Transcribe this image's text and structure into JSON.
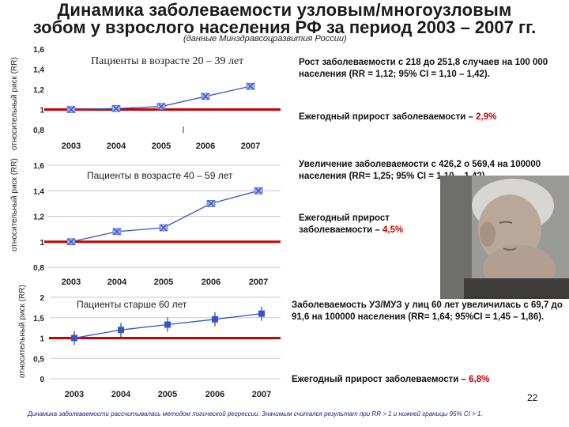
{
  "title": {
    "line1": "Динамика  заболеваемости узловым/многоузловым",
    "line2": "зобом у взрослого населения РФ за период 2003 – 2007 гг."
  },
  "source": "(данные Минздравсоцразвития России)",
  "panels": [
    {
      "ylabel": "относительный риск (RR)",
      "subtitle": "Пациенты в возрасте 20 – 39 лет",
      "text_main": "Рост заболеваемости с 218 до 251,8 случаев на 100 000 населения (RR = 1,12; 95% CI = 1,10 – 1,42).",
      "text_growth_prefix": "Ежегодный прирост заболеваемости –",
      "text_growth_value": "2,9%"
    },
    {
      "ylabel": "относительный риск (RR)",
      "subtitle": "Пациенты в возрасте 40 – 59 лет",
      "text_main": "Увеличение заболеваемости с 426,2 о 569,4 на 100000 населения (RR= 1,25; 95% CI = 1,10 – 1,42).",
      "text_growth_prefix": "Ежегодный прирост заболеваемости –",
      "text_growth_value": "4,5%"
    },
    {
      "ylabel": "относительный риск (RR)",
      "subtitle": "Пациенты старше 60 лет",
      "text_main": "Заболеваемость УЗ/МУЗ у лиц 60 лет увеличилась с 69,7 до 91,6 на 100000 населения (RR= 1,64; 95%CI = 1,45 – 1,86).",
      "text_growth_prefix": "Ежегодный прирост заболеваемости –",
      "text_growth_value": "6,8%"
    }
  ],
  "page_number": "22",
  "footnote": "Динамика заболеваемости рассчитывалась методом логической регрессии. Значимым считался результат при RR > 1 и нижней границы 95% CI > 1.",
  "chart_data": [
    {
      "type": "line",
      "x": [
        "2003",
        "2004",
        "2005",
        "2006",
        "2007"
      ],
      "series": [
        {
          "values": [
            1.0,
            1.01,
            1.03,
            1.13,
            1.23
          ]
        }
      ],
      "ylabel": "относительный риск (RR)",
      "yticks": [
        "0,8",
        "1",
        "1,2",
        "1,4",
        "1,6"
      ],
      "ylim": [
        0.8,
        1.6
      ],
      "reference_line": 1,
      "marker": "x",
      "grid": false,
      "colors": {
        "line": "#3355cc",
        "marker": "#3355cc",
        "reference": "#cc0000"
      }
    },
    {
      "type": "line",
      "x": [
        "2003",
        "2004",
        "2005",
        "2006",
        "2007"
      ],
      "series": [
        {
          "values": [
            1.0,
            1.08,
            1.11,
            1.3,
            1.4
          ]
        }
      ],
      "ylabel": "относительный риск (RR)",
      "yticks": [
        "0,8",
        "1",
        "1,2",
        "1,4",
        "1,6"
      ],
      "ylim": [
        0.8,
        1.6
      ],
      "reference_line": 1,
      "marker": "x",
      "grid": true,
      "colors": {
        "line": "#3355cc",
        "marker": "#3355cc",
        "reference": "#cc0000"
      }
    },
    {
      "type": "line",
      "x": [
        "2003",
        "2004",
        "2005",
        "2006",
        "2007"
      ],
      "series": [
        {
          "values": [
            1.0,
            1.2,
            1.33,
            1.46,
            1.6
          ]
        }
      ],
      "ylabel": "относительный риск (RR)",
      "yticks": [
        "0",
        "0,5",
        "1",
        "1,5",
        "2"
      ],
      "ylim": [
        0,
        2
      ],
      "reference_line": 1,
      "marker": "square",
      "error_bars": true,
      "grid": true,
      "colors": {
        "line": "#3355cc",
        "marker": "#3355cc",
        "reference": "#cc0000"
      }
    }
  ]
}
